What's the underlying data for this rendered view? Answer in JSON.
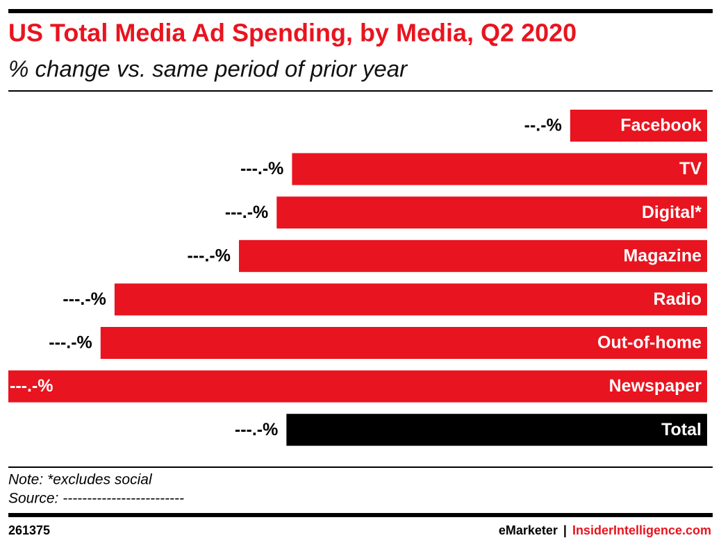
{
  "chart_data": {
    "type": "hbar",
    "title": "US Total Media Ad Spending, by Media, Q2 2020",
    "subtitle": "% change vs. same period of prior year",
    "categories": [
      "Facebook",
      "TV",
      "Digital*",
      "Magazine",
      "Radio",
      "Out-of-home",
      "Newspaper",
      "Total"
    ],
    "values": [
      -9.8,
      -29.7,
      -30.8,
      -33.5,
      -42.4,
      -43.4,
      -50,
      -30.1
    ],
    "value_labels": [
      "--.-%",
      "---.-%",
      "---.-%",
      "---.-%",
      "---.-%",
      "---.-%",
      "---.-%",
      "---.-%"
    ],
    "colors": [
      "#e8141f",
      "#e8141f",
      "#e8141f",
      "#e8141f",
      "#e8141f",
      "#e8141f",
      "#e8141f",
      "#000000"
    ],
    "xlim": [
      -50,
      0
    ]
  },
  "note": "Note: *excludes social",
  "source": "Source: -------------------------",
  "footer": {
    "id": "261375",
    "brand": "eMarketer",
    "separator": "|",
    "site": "InsiderIntelligence.com"
  }
}
